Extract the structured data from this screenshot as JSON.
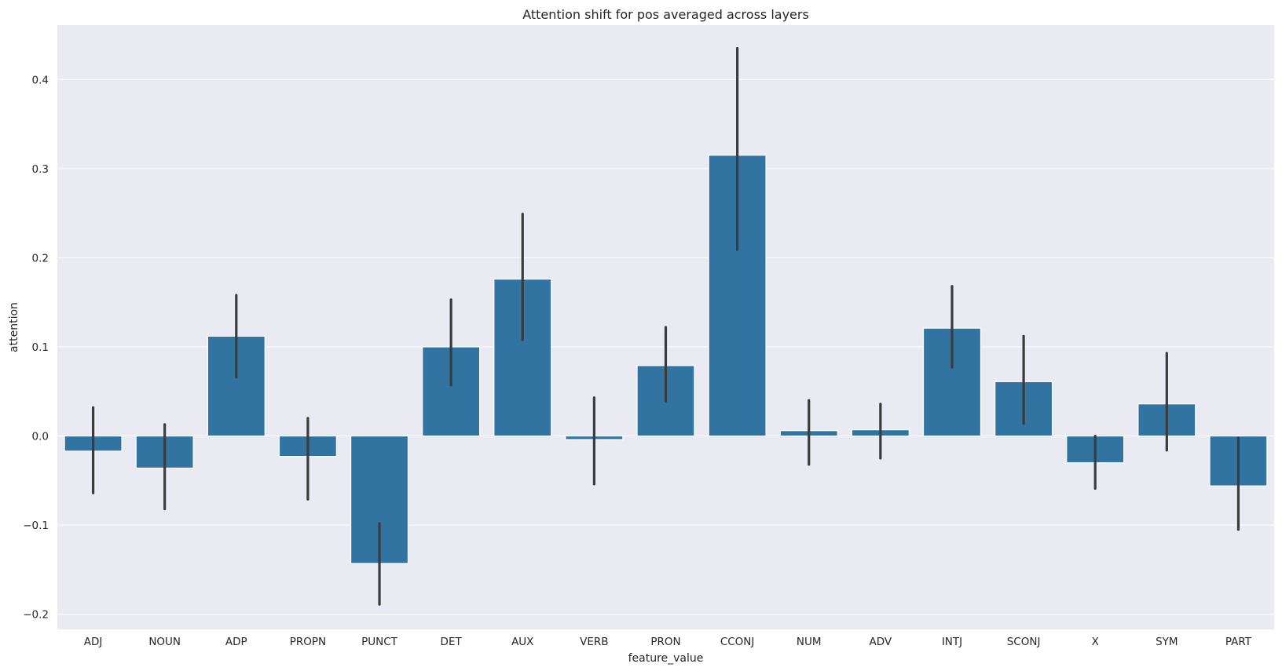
{
  "chart_data": {
    "type": "bar",
    "title": "Attention shift for pos averaged across layers",
    "xlabel": "feature_value",
    "ylabel": "attention",
    "categories": [
      "ADJ",
      "NOUN",
      "ADP",
      "PROPN",
      "PUNCT",
      "DET",
      "AUX",
      "VERB",
      "PRON",
      "CCONJ",
      "NUM",
      "ADV",
      "INTJ",
      "SCONJ",
      "X",
      "SYM",
      "PART"
    ],
    "values": [
      -0.017,
      -0.036,
      0.112,
      -0.023,
      -0.143,
      0.1,
      0.176,
      -0.004,
      0.079,
      0.315,
      0.006,
      0.007,
      0.121,
      0.061,
      -0.03,
      0.036,
      -0.056
    ],
    "error_low": [
      -0.064,
      -0.082,
      0.066,
      -0.071,
      -0.189,
      0.057,
      0.108,
      -0.054,
      0.039,
      0.209,
      -0.032,
      -0.025,
      0.077,
      0.014,
      -0.059,
      -0.016,
      -0.105
    ],
    "error_high": [
      0.032,
      0.013,
      0.158,
      0.02,
      -0.098,
      0.153,
      0.249,
      0.043,
      0.122,
      0.435,
      0.04,
      0.036,
      0.168,
      0.112,
      0.0,
      0.093,
      -0.002
    ],
    "ylim": [
      -0.217,
      0.461
    ],
    "yticks": [
      -0.2,
      -0.1,
      0.0,
      0.1,
      0.2,
      0.3,
      0.4
    ],
    "ytick_labels": [
      "−0.2",
      "−0.1",
      "0.0",
      "0.1",
      "0.2",
      "0.3",
      "0.4"
    ],
    "grid": true,
    "colors": {
      "bar": "#3274a1",
      "background": "#eaeaf2",
      "grid": "#ffffff",
      "errorbar": "#3b3b3b"
    }
  }
}
